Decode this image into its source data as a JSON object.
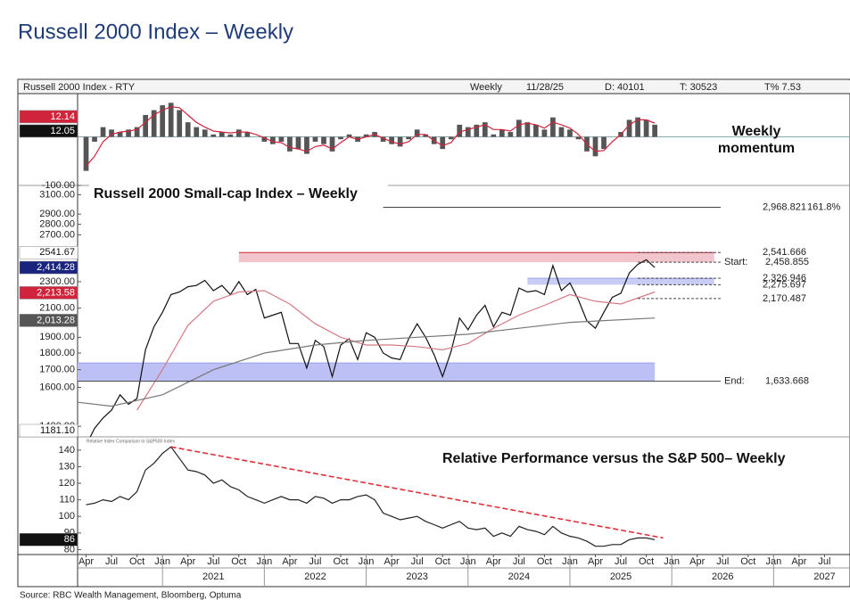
{
  "title": "Russell 2000 Index – Weekly",
  "header": {
    "left": "Russell 2000 Index - RTY",
    "items": [
      "Weekly",
      "11/28/25",
      "D: 40101",
      "T: 30523",
      "T% 7.53"
    ]
  },
  "source": "Source: RBC Wealth Management, Bloomberg, Optuma",
  "x_axis": {
    "xlim": [
      "2020-03",
      "2027-10"
    ],
    "month_ticks": [
      {
        "value": "2020-04",
        "label": "Apr"
      },
      {
        "value": "2020-07",
        "label": "Jul"
      },
      {
        "value": "2020-10",
        "label": "Oct"
      },
      {
        "value": "2021-01",
        "label": "Jan"
      },
      {
        "value": "2021-04",
        "label": "Apr"
      },
      {
        "value": "2021-07",
        "label": "Jul"
      },
      {
        "value": "2021-10",
        "label": "Oct"
      },
      {
        "value": "2022-01",
        "label": "Jan"
      },
      {
        "value": "2022-04",
        "label": "Apr"
      },
      {
        "value": "2022-07",
        "label": "Jul"
      },
      {
        "value": "2022-10",
        "label": "Oct"
      },
      {
        "value": "2023-01",
        "label": "Jan"
      },
      {
        "value": "2023-04",
        "label": "Apr"
      },
      {
        "value": "2023-07",
        "label": "Jul"
      },
      {
        "value": "2023-10",
        "label": "Oct"
      },
      {
        "value": "2024-01",
        "label": "Jan"
      },
      {
        "value": "2024-04",
        "label": "Apr"
      },
      {
        "value": "2024-07",
        "label": "Jul"
      },
      {
        "value": "2024-10",
        "label": "Oct"
      },
      {
        "value": "2025-01",
        "label": "Jan"
      },
      {
        "value": "2025-04",
        "label": "Apr"
      },
      {
        "value": "2025-07",
        "label": "Jul"
      },
      {
        "value": "2025-10",
        "label": "Oct"
      },
      {
        "value": "2026-01",
        "label": "Jan"
      },
      {
        "value": "2026-04",
        "label": "Apr"
      },
      {
        "value": "2026-07",
        "label": "Jul"
      },
      {
        "value": "2026-10",
        "label": "Oct"
      },
      {
        "value": "2027-01",
        "label": "Jan"
      },
      {
        "value": "2027-04",
        "label": "Apr"
      },
      {
        "value": "2027-07",
        "label": "Jul"
      }
    ],
    "years": [
      "2021",
      "2022",
      "2023",
      "2024",
      "2025",
      "2026",
      "2027"
    ]
  },
  "chart_data": [
    {
      "type": "bar",
      "title": [
        "Weekly",
        "momentum"
      ],
      "ylim": [
        -100,
        89
      ],
      "yticks": [
        {
          "value": -100,
          "label": "-100.00"
        }
      ],
      "zero_line": true,
      "x": [
        "2020-04",
        "2020-05",
        "2020-06",
        "2020-07",
        "2020-08",
        "2020-09",
        "2020-10",
        "2020-11",
        "2020-12",
        "2021-01",
        "2021-02",
        "2021-03",
        "2021-04",
        "2021-05",
        "2021-06",
        "2021-07",
        "2021-08",
        "2021-09",
        "2021-10",
        "2021-11",
        "2021-12",
        "2022-01",
        "2022-02",
        "2022-03",
        "2022-04",
        "2022-05",
        "2022-06",
        "2022-07",
        "2022-08",
        "2022-09",
        "2022-10",
        "2022-11",
        "2022-12",
        "2023-01",
        "2023-02",
        "2023-03",
        "2023-04",
        "2023-05",
        "2023-06",
        "2023-07",
        "2023-08",
        "2023-09",
        "2023-10",
        "2023-11",
        "2023-12",
        "2024-01",
        "2024-02",
        "2024-03",
        "2024-04",
        "2024-05",
        "2024-06",
        "2024-07",
        "2024-08",
        "2024-09",
        "2024-10",
        "2024-11",
        "2024-12",
        "2025-01",
        "2025-02",
        "2025-03",
        "2025-04",
        "2025-05",
        "2025-06",
        "2025-07",
        "2025-08",
        "2025-09",
        "2025-10",
        "2025-11"
      ],
      "series": [
        {
          "type": "bar",
          "color": "#555555",
          "values": [
            -70,
            -10,
            20,
            15,
            10,
            15,
            20,
            45,
            55,
            65,
            70,
            55,
            30,
            20,
            15,
            5,
            10,
            5,
            15,
            10,
            0,
            -10,
            -15,
            -10,
            -30,
            -25,
            -35,
            -10,
            -15,
            -30,
            -5,
            5,
            -10,
            5,
            10,
            -10,
            -15,
            -20,
            -5,
            15,
            5,
            -15,
            -25,
            -5,
            25,
            20,
            25,
            30,
            5,
            15,
            10,
            35,
            30,
            25,
            15,
            40,
            20,
            15,
            -5,
            -30,
            -40,
            -25,
            0,
            10,
            35,
            40,
            35,
            25
          ]
        },
        {
          "type": "line",
          "color": "#d0243c",
          "values": [
            -60,
            -40,
            -10,
            5,
            10,
            12,
            15,
            30,
            45,
            55,
            62,
            60,
            45,
            30,
            20,
            12,
            10,
            8,
            10,
            10,
            5,
            -2,
            -10,
            -12,
            -22,
            -25,
            -30,
            -20,
            -17,
            -25,
            -12,
            0,
            -5,
            0,
            5,
            -3,
            -10,
            -15,
            -10,
            5,
            5,
            -8,
            -18,
            -12,
            10,
            15,
            20,
            25,
            15,
            15,
            12,
            25,
            28,
            25,
            18,
            30,
            25,
            18,
            5,
            -15,
            -30,
            -28,
            -10,
            5,
            25,
            35,
            35,
            28
          ]
        }
      ],
      "tags": [
        {
          "value": 12.14,
          "bg": "#d0243c",
          "fg": "#ffffff"
        },
        {
          "value": 12.05,
          "bg": "#111111",
          "fg": "#ffffff"
        }
      ]
    },
    {
      "type": "line",
      "title": "Russell 2000 Small-cap Index – Weekly",
      "log": true,
      "ylim": [
        1350,
        3200
      ],
      "yticks": [
        {
          "value": 1400,
          "label": "1400.00"
        },
        {
          "value": 1600,
          "label": "1600.00"
        },
        {
          "value": 1700,
          "label": "1700.00"
        },
        {
          "value": 1800,
          "label": "1800.00"
        },
        {
          "value": 1900,
          "label": "1900.00"
        },
        {
          "value": 2100,
          "label": "2100.00"
        },
        {
          "value": 2300,
          "label": "2300.00"
        },
        {
          "value": 2700,
          "label": "2700.00"
        },
        {
          "value": 2800,
          "label": "2800.00"
        },
        {
          "value": 2900,
          "label": "2900.00"
        },
        {
          "value": 3100,
          "label": "3100.00"
        }
      ],
      "x": [
        "2020-04",
        "2020-05",
        "2020-06",
        "2020-07",
        "2020-08",
        "2020-09",
        "2020-10",
        "2020-11",
        "2020-12",
        "2021-01",
        "2021-02",
        "2021-03",
        "2021-04",
        "2021-05",
        "2021-06",
        "2021-07",
        "2021-08",
        "2021-09",
        "2021-10",
        "2021-11",
        "2021-12",
        "2022-01",
        "2022-02",
        "2022-03",
        "2022-04",
        "2022-05",
        "2022-06",
        "2022-07",
        "2022-08",
        "2022-09",
        "2022-10",
        "2022-11",
        "2022-12",
        "2023-01",
        "2023-02",
        "2023-03",
        "2023-04",
        "2023-05",
        "2023-06",
        "2023-07",
        "2023-08",
        "2023-09",
        "2023-10",
        "2023-11",
        "2023-12",
        "2024-01",
        "2024-02",
        "2024-03",
        "2024-04",
        "2024-05",
        "2024-06",
        "2024-07",
        "2024-08",
        "2024-09",
        "2024-10",
        "2024-11",
        "2024-12",
        "2025-01",
        "2025-02",
        "2025-03",
        "2025-04",
        "2025-05",
        "2025-06",
        "2025-07",
        "2025-08",
        "2025-09",
        "2025-10",
        "2025-11"
      ],
      "series": [
        {
          "color": "#111111",
          "values": [
            1310,
            1390,
            1440,
            1480,
            1560,
            1510,
            1540,
            1820,
            1970,
            2070,
            2200,
            2220,
            2260,
            2270,
            2310,
            2230,
            2270,
            2200,
            2300,
            2200,
            2240,
            2030,
            2050,
            2070,
            1860,
            1860,
            1710,
            1880,
            1840,
            1660,
            1850,
            1890,
            1760,
            1930,
            1900,
            1800,
            1770,
            1760,
            1890,
            1990,
            1900,
            1790,
            1660,
            1810,
            2030,
            1950,
            2050,
            2120,
            1970,
            2070,
            2050,
            2250,
            2220,
            2230,
            2200,
            2430,
            2230,
            2290,
            2160,
            2010,
            1960,
            2070,
            2180,
            2210,
            2370,
            2440,
            2480,
            2414
          ]
        },
        {
          "color": "#d47a84",
          "x": [
            "2020-10",
            "2021-01",
            "2021-04",
            "2021-07",
            "2021-10",
            "2022-01",
            "2022-04",
            "2022-07",
            "2022-10",
            "2023-01",
            "2023-04",
            "2023-07",
            "2023-10",
            "2024-01",
            "2024-04",
            "2024-07",
            "2024-10",
            "2025-01",
            "2025-04",
            "2025-07",
            "2025-11"
          ],
          "values": [
            1480,
            1700,
            1980,
            2150,
            2220,
            2230,
            2130,
            1990,
            1900,
            1850,
            1850,
            1840,
            1820,
            1860,
            1960,
            2050,
            2120,
            2200,
            2150,
            2130,
            2220
          ]
        },
        {
          "color": "#777777",
          "x": [
            "2020-03",
            "2020-07",
            "2021-01",
            "2021-07",
            "2022-01",
            "2022-07",
            "2023-01",
            "2023-07",
            "2024-01",
            "2024-07",
            "2025-01",
            "2025-11"
          ],
          "values": [
            1520,
            1500,
            1560,
            1700,
            1800,
            1850,
            1880,
            1900,
            1920,
            1960,
            2000,
            2030
          ]
        }
      ],
      "zones": [
        {
          "from": 2458.855,
          "to": 2541.666,
          "x": [
            "2021-10",
            "2026-06"
          ],
          "color": "#f2c4cb",
          "edge": "#d0243c"
        },
        {
          "from": 2275.697,
          "to": 2326.946,
          "x": [
            "2024-08",
            "2026-06"
          ],
          "color": "#c9cdf5",
          "edge": "#9aa0e8"
        },
        {
          "from": 1633.668,
          "to": 1740,
          "x": [
            "2020-03",
            "2025-11"
          ],
          "color": "#bcc0f4",
          "edge": "#9aa0e8"
        }
      ],
      "levels": [
        {
          "value": 2968.821,
          "label": "2,968.821",
          "note": "161.8%",
          "from": "2023-03"
        },
        {
          "value": 2541.666,
          "label": "2,541.666",
          "from": "2025-09",
          "dashed": true
        },
        {
          "value": 2458.855,
          "label": "2,458.855",
          "prefix": "Start:",
          "from": "2025-09",
          "dashed": true
        },
        {
          "value": 2326.946,
          "label": "2,326.946",
          "from": "2025-09",
          "dashed": true
        },
        {
          "value": 2275.697,
          "label": "2,275.697",
          "from": "2025-09",
          "dashed": true
        },
        {
          "value": 2170.487,
          "label": "2,170.487",
          "from": "2025-09",
          "dashed": true
        },
        {
          "value": 1633.668,
          "label": "1,633.668",
          "prefix": "End:",
          "from": "2020-03"
        }
      ],
      "tags": [
        {
          "value": 2541.67,
          "bg": "#ffffff",
          "fg": "#111111"
        },
        {
          "value": 2414.28,
          "label": "2,414.28",
          "bg": "#1a237e",
          "fg": "#ffffff"
        },
        {
          "value": 2213.58,
          "label": "2,213.58",
          "bg": "#d0243c",
          "fg": "#ffffff"
        },
        {
          "value": 2013.28,
          "label": "2,013.28",
          "bg": "#555555",
          "fg": "#ffffff"
        },
        {
          "value": 1181.1,
          "label": "1181.10",
          "bg": "#ffffff",
          "fg": "#111111"
        }
      ]
    },
    {
      "type": "line",
      "title": "Relative Performance versus the S&P 500– Weekly",
      "subtitle": "Relative Index Comparison to S&P500 Index",
      "ylim": [
        77,
        148
      ],
      "yticks": [
        80,
        90,
        100,
        110,
        120,
        130,
        140
      ],
      "x": [
        "2020-04",
        "2020-05",
        "2020-06",
        "2020-07",
        "2020-08",
        "2020-09",
        "2020-10",
        "2020-11",
        "2020-12",
        "2021-01",
        "2021-02",
        "2021-03",
        "2021-04",
        "2021-05",
        "2021-06",
        "2021-07",
        "2021-08",
        "2021-09",
        "2021-10",
        "2021-11",
        "2021-12",
        "2022-01",
        "2022-02",
        "2022-03",
        "2022-04",
        "2022-05",
        "2022-06",
        "2022-07",
        "2022-08",
        "2022-09",
        "2022-10",
        "2022-11",
        "2022-12",
        "2023-01",
        "2023-02",
        "2023-03",
        "2023-04",
        "2023-05",
        "2023-06",
        "2023-07",
        "2023-08",
        "2023-09",
        "2023-10",
        "2023-11",
        "2023-12",
        "2024-01",
        "2024-02",
        "2024-03",
        "2024-04",
        "2024-05",
        "2024-06",
        "2024-07",
        "2024-08",
        "2024-09",
        "2024-10",
        "2024-11",
        "2024-12",
        "2025-01",
        "2025-02",
        "2025-03",
        "2025-04",
        "2025-05",
        "2025-06",
        "2025-07",
        "2025-08",
        "2025-09",
        "2025-10",
        "2025-11"
      ],
      "series": [
        {
          "color": "#222222",
          "values": [
            107,
            108,
            110,
            109,
            112,
            110,
            115,
            128,
            132,
            138,
            142,
            135,
            128,
            127,
            125,
            120,
            122,
            118,
            116,
            112,
            110,
            108,
            110,
            112,
            110,
            110,
            108,
            112,
            111,
            108,
            110,
            110,
            112,
            113,
            110,
            102,
            100,
            98,
            99,
            100,
            97,
            95,
            93,
            95,
            97,
            93,
            92,
            93,
            88,
            90,
            88,
            94,
            92,
            91,
            89,
            94,
            90,
            88,
            87,
            85,
            82,
            82,
            83,
            83,
            86,
            87,
            87,
            86
          ]
        },
        {
          "color": "#e0303a",
          "dash": true,
          "x": [
            "2021-02",
            "2025-12"
          ],
          "values": [
            142,
            87
          ]
        }
      ],
      "tags": [
        {
          "value": 86,
          "bg": "#111111",
          "fg": "#ffffff"
        }
      ]
    }
  ]
}
